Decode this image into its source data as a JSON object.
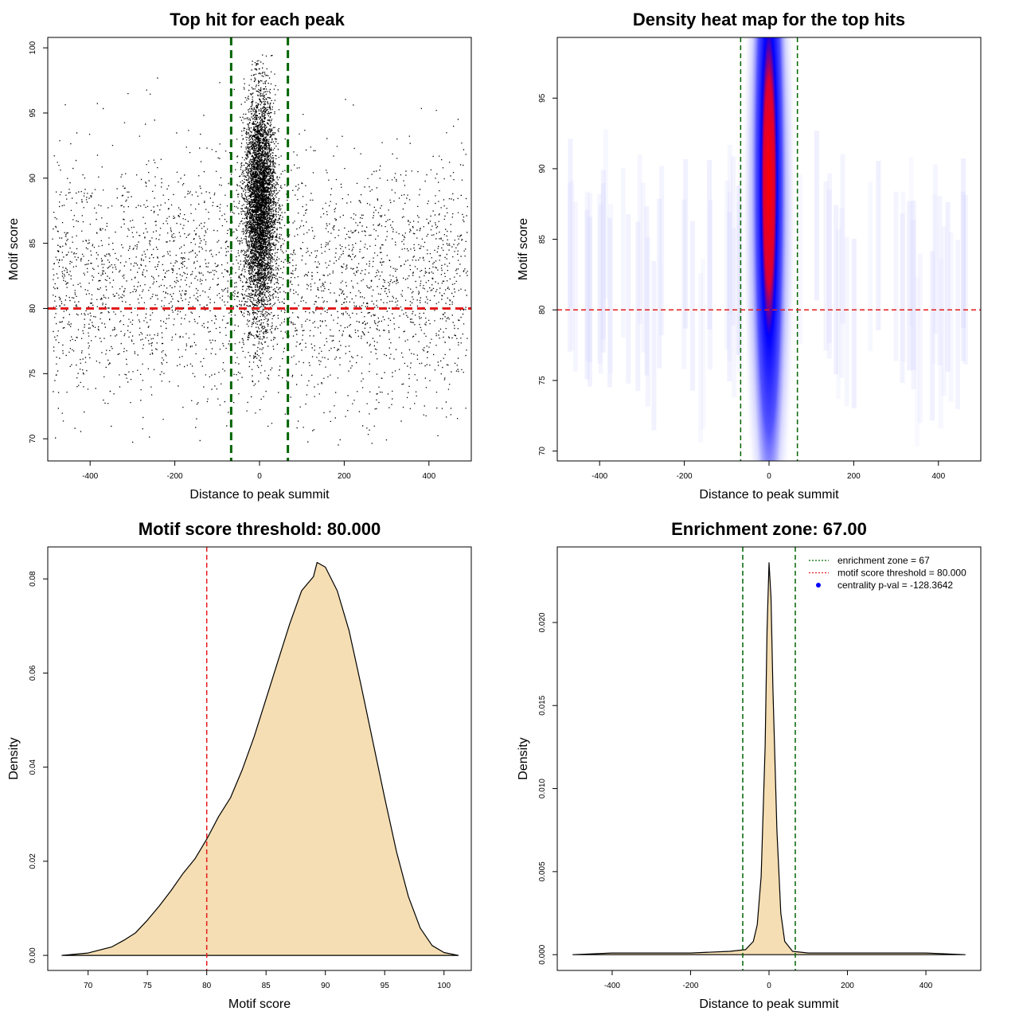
{
  "chart_data": [
    {
      "type": "scatter",
      "title": "Top hit for each peak",
      "xlabel": "Distance to peak summit",
      "ylabel": "Motif score",
      "xlim": [
        -500,
        500
      ],
      "ylim": [
        68.3,
        100.8
      ],
      "xticks": [
        -400,
        -200,
        0,
        200,
        400
      ],
      "yticks": [
        70,
        75,
        80,
        85,
        90,
        95,
        100
      ],
      "xtick_labels": [
        "-400",
        "-200",
        "0",
        "200",
        "400"
      ],
      "ytick_labels": [
        "70",
        "75",
        "80",
        "85",
        "90",
        "95",
        "100"
      ],
      "enrichment_lines_x": [
        -67,
        67
      ],
      "threshold_line_y": 80,
      "enrichment_color": "#006400",
      "threshold_color": "#e41a1c",
      "point_color": "#000000",
      "central_cluster": {
        "x_center": 0,
        "x_spread": 18,
        "y_center": 88,
        "y_range": [
          75,
          99.5
        ]
      },
      "background_points": {
        "x_range": [
          -490,
          490
        ],
        "y_range": [
          69.5,
          98.5
        ]
      }
    },
    {
      "type": "heatmap",
      "title": "Density heat map for the top hits",
      "xlabel": "Distance to peak summit",
      "ylabel": "Motif score",
      "xlim": [
        -500,
        500
      ],
      "ylim": [
        69.3,
        99.3
      ],
      "xticks": [
        -400,
        -200,
        0,
        200,
        400
      ],
      "yticks": [
        70,
        75,
        80,
        85,
        90,
        95
      ],
      "xtick_labels": [
        "-400",
        "-200",
        "0",
        "200",
        "400"
      ],
      "ytick_labels": [
        "70",
        "75",
        "80",
        "85",
        "90",
        "95"
      ],
      "enrichment_lines_x": [
        -67,
        67
      ],
      "threshold_line_y": 80,
      "hotspot": {
        "x": 0,
        "y": 89
      },
      "colors": [
        "#ffffff",
        "#0000ff",
        "#ff0000"
      ]
    },
    {
      "type": "area",
      "title": "Motif score threshold: 80.000",
      "xlabel": "Motif score",
      "ylabel": "Density",
      "xlim": [
        66.6,
        102.3
      ],
      "ylim": [
        -0.0032,
        0.0868
      ],
      "xticks": [
        70,
        75,
        80,
        85,
        90,
        95,
        100
      ],
      "yticks": [
        0.0,
        0.02,
        0.04,
        0.06,
        0.08
      ],
      "xtick_labels": [
        "70",
        "75",
        "80",
        "85",
        "90",
        "95",
        "100"
      ],
      "ytick_labels": [
        "0.00",
        "0.02",
        "0.04",
        "0.06",
        "0.08"
      ],
      "threshold_line_x": 80,
      "fill_color": "#f5deb3",
      "x": [
        67.8,
        70,
        72,
        73,
        74,
        75,
        76,
        77,
        78,
        79,
        80,
        81,
        82,
        83,
        84,
        85,
        86,
        87,
        88,
        89,
        89.3,
        90,
        91,
        92,
        93,
        94,
        95,
        96,
        97,
        98,
        99,
        100,
        101.2
      ],
      "values": [
        0.0,
        0.0005,
        0.0018,
        0.0032,
        0.0048,
        0.0075,
        0.0105,
        0.0138,
        0.0174,
        0.0205,
        0.0247,
        0.0295,
        0.0335,
        0.0395,
        0.0465,
        0.0545,
        0.0625,
        0.0705,
        0.0775,
        0.0805,
        0.0835,
        0.0825,
        0.0775,
        0.069,
        0.0575,
        0.0455,
        0.0335,
        0.022,
        0.0125,
        0.0058,
        0.0021,
        0.0006,
        0.0
      ]
    },
    {
      "type": "area",
      "title": "Enrichment zone: 67.00",
      "xlabel": "Distance to peak summit",
      "ylabel": "Density",
      "xlim": [
        -540,
        540
      ],
      "ylim": [
        -0.00095,
        0.02455
      ],
      "xticks": [
        -400,
        -200,
        0,
        200,
        400
      ],
      "yticks": [
        0.0,
        0.005,
        0.01,
        0.015,
        0.02
      ],
      "xtick_labels": [
        "-400",
        "-200",
        "0",
        "200",
        "400"
      ],
      "ytick_labels": [
        "0.000",
        "0.005",
        "0.010",
        "0.015",
        "0.020"
      ],
      "enrichment_lines_x": [
        -67,
        67
      ],
      "fill_color": "#f5deb3",
      "x": [
        -500,
        -400,
        -300,
        -200,
        -100,
        -60,
        -40,
        -30,
        -20,
        -10,
        -5,
        0,
        5,
        10,
        20,
        30,
        40,
        60,
        100,
        200,
        300,
        400,
        500
      ],
      "values": [
        0.0,
        0.0001,
        0.0001,
        0.0001,
        0.0002,
        0.0003,
        0.0008,
        0.0018,
        0.0047,
        0.0125,
        0.0195,
        0.0236,
        0.0215,
        0.016,
        0.0075,
        0.0025,
        0.0008,
        0.0002,
        0.0001,
        0.0001,
        0.0001,
        0.0001,
        0.0
      ],
      "legend": {
        "position": "top-right",
        "entries": [
          {
            "label": "enrichment zone = 67",
            "color": "#006400",
            "style": "dotted-line"
          },
          {
            "label": "motif score threshold = 80.000",
            "color": "#e41a1c",
            "style": "dotted-line"
          },
          {
            "label": "centrality p-val = -128.3642",
            "color": "#0000ff",
            "style": "point"
          }
        ]
      }
    }
  ]
}
